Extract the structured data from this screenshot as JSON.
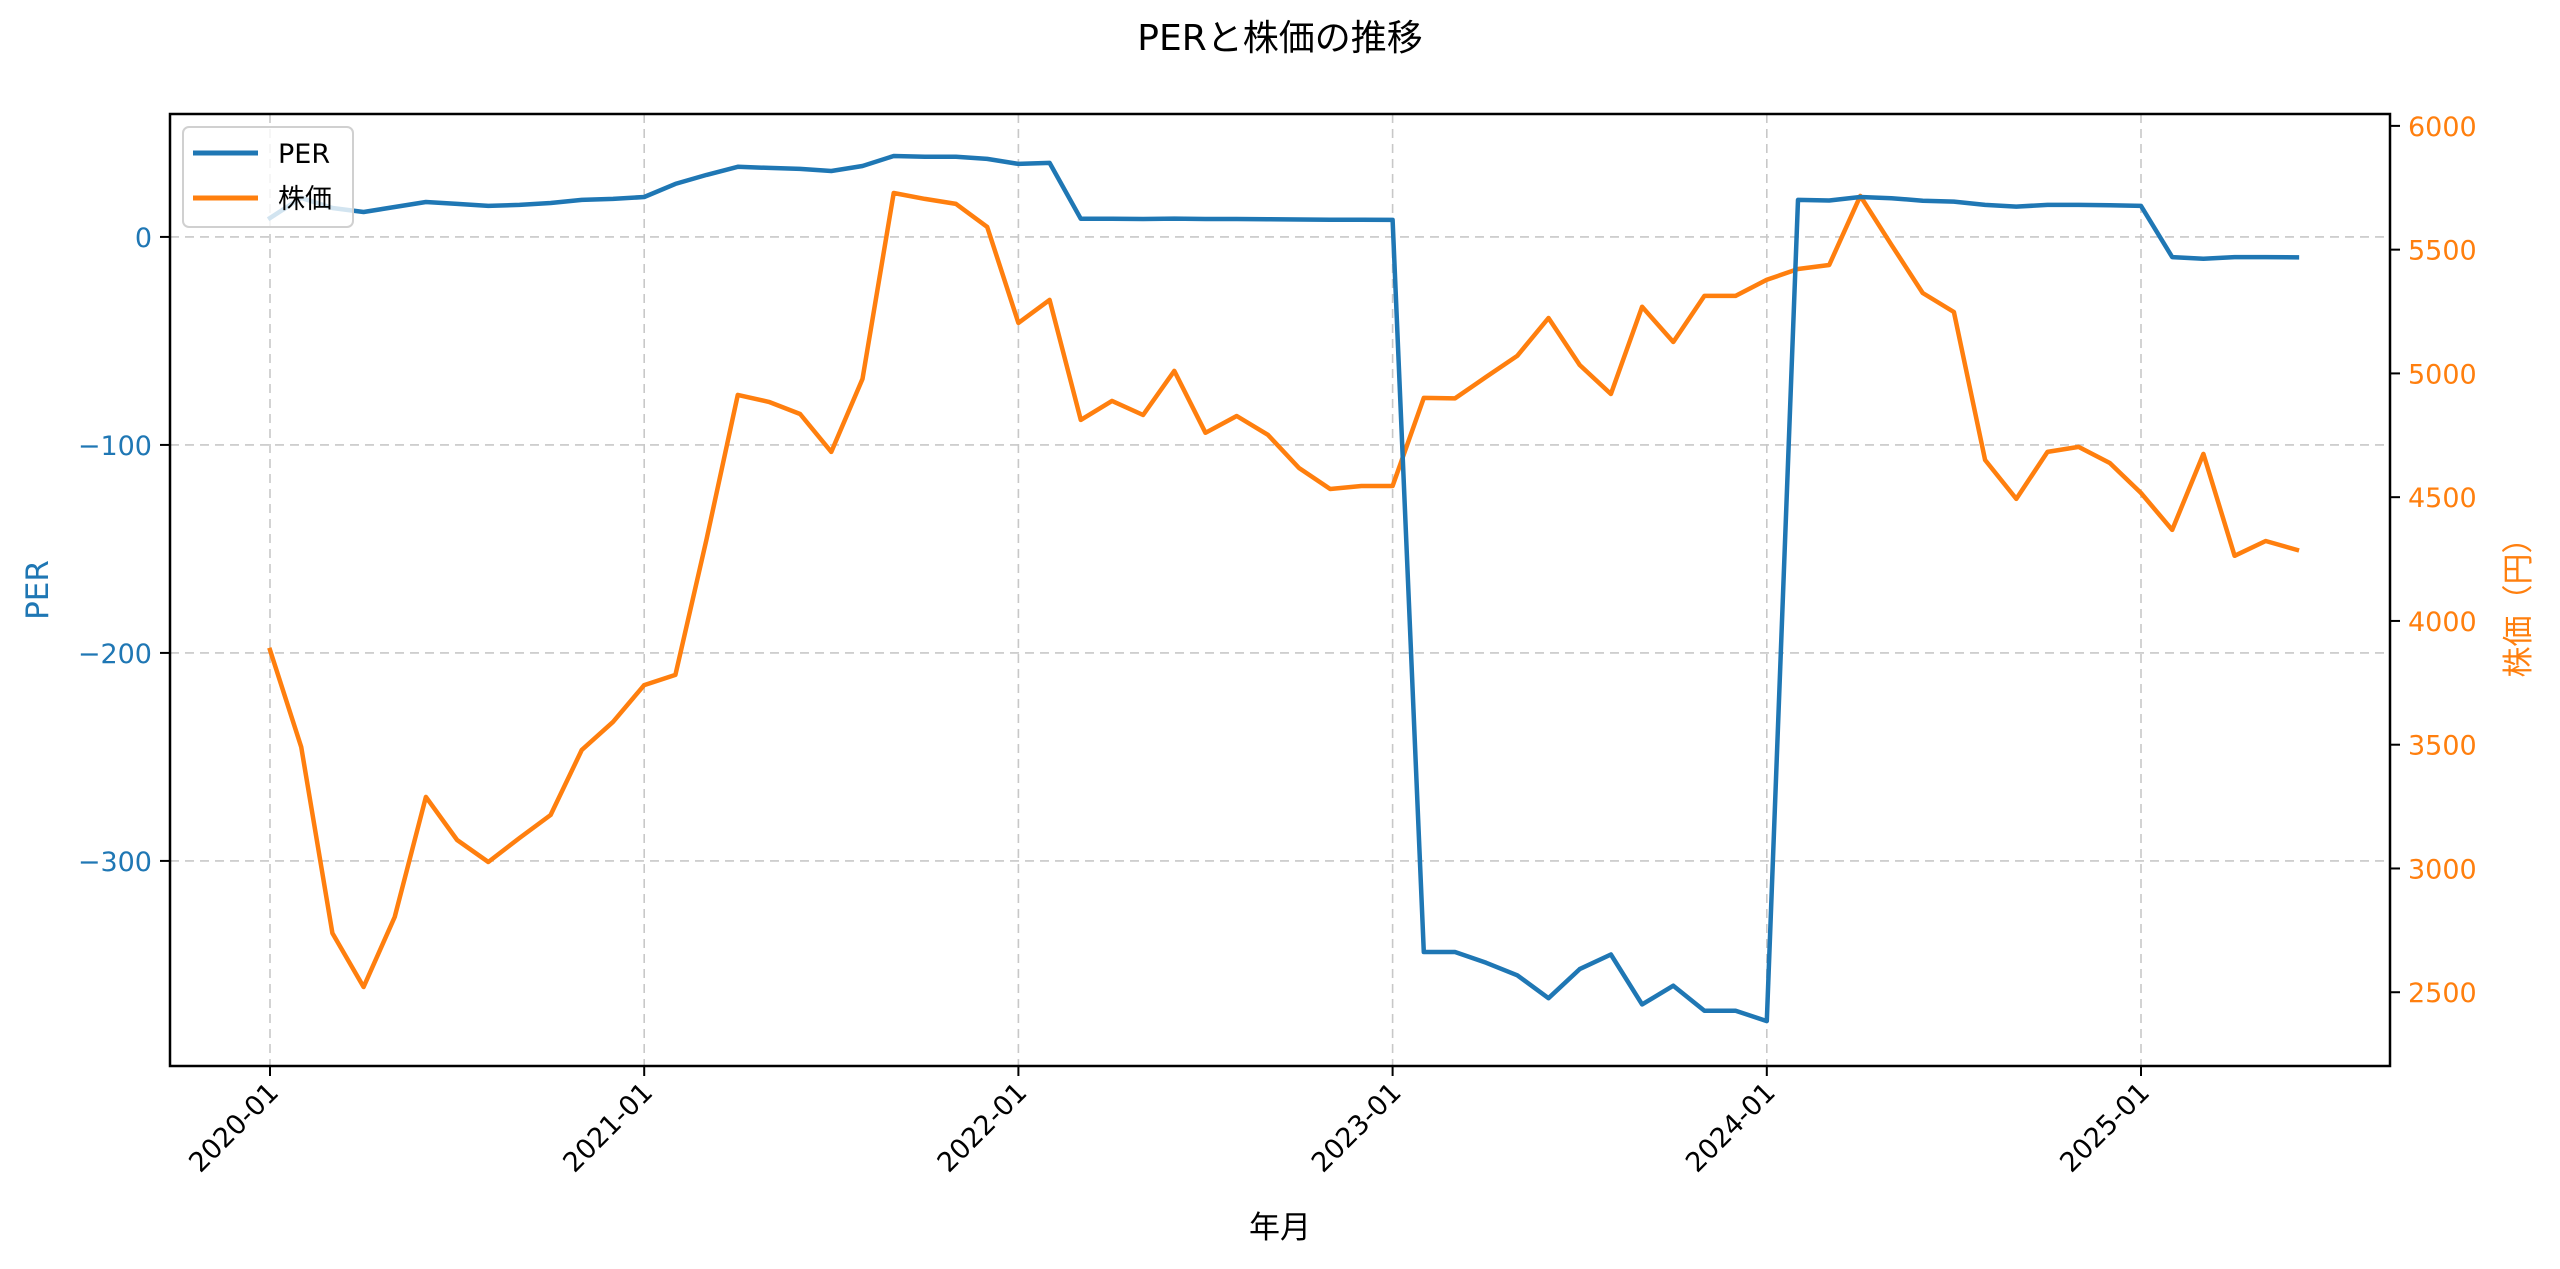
{
  "chart_data": {
    "type": "line",
    "title": "PERと株価の推移",
    "xlabel": "年月",
    "ylabel_left": "PER",
    "ylabel_right": "株価（円）",
    "x_ticks": [
      "2020-01",
      "2021-01",
      "2022-01",
      "2023-01",
      "2024-01",
      "2025-01"
    ],
    "y_left_ticks": [
      0,
      -100,
      -200,
      -300
    ],
    "y_left_tick_labels": [
      "0",
      "−100",
      "−200",
      "−300"
    ],
    "y_right_ticks": [
      2500,
      3000,
      3500,
      4000,
      4500,
      5000,
      5500,
      6000
    ],
    "y_right_tick_labels": [
      "2500",
      "3000",
      "3500",
      "4000",
      "4500",
      "5000",
      "5500",
      "6000"
    ],
    "ylim_left": [
      -398.6,
      59.1
    ],
    "ylim_right": [
      2202,
      6048
    ],
    "grid": true,
    "legend": {
      "position": "upper left",
      "entries": [
        "PER",
        "株価"
      ]
    },
    "x": [
      "2020-01",
      "2020-02",
      "2020-03",
      "2020-04",
      "2020-05",
      "2020-06",
      "2020-07",
      "2020-08",
      "2020-09",
      "2020-10",
      "2020-11",
      "2020-12",
      "2021-01",
      "2021-02",
      "2021-03",
      "2021-04",
      "2021-05",
      "2021-06",
      "2021-07",
      "2021-08",
      "2021-09",
      "2021-10",
      "2021-11",
      "2021-12",
      "2022-01",
      "2022-02",
      "2022-03",
      "2022-04",
      "2022-05",
      "2022-06",
      "2022-07",
      "2022-08",
      "2022-09",
      "2022-10",
      "2022-11",
      "2022-12",
      "2023-01",
      "2023-02",
      "2023-03",
      "2023-04",
      "2023-05",
      "2023-06",
      "2023-07",
      "2023-08",
      "2023-09",
      "2023-10",
      "2023-11",
      "2023-12",
      "2024-01",
      "2024-02",
      "2024-03",
      "2024-04",
      "2024-05",
      "2024-06",
      "2024-07",
      "2024-08",
      "2024-09",
      "2024-10",
      "2024-11",
      "2024-12",
      "2025-01",
      "2025-02",
      "2025-03",
      "2025-04",
      "2025-05",
      "2025-06"
    ],
    "series": [
      {
        "name": "PER",
        "axis": "left",
        "color": "#1f77b4",
        "values": [
          9.1,
          18.8,
          13.9,
          12.0,
          14.4,
          16.8,
          15.9,
          14.9,
          15.4,
          16.3,
          17.8,
          18.3,
          19.2,
          25.5,
          29.8,
          33.7,
          33.2,
          32.7,
          31.7,
          34.1,
          38.9,
          38.5,
          38.5,
          37.5,
          35.1,
          35.6,
          8.7,
          8.7,
          8.6,
          8.8,
          8.6,
          8.6,
          8.5,
          8.4,
          8.3,
          8.3,
          8.2,
          -343.8,
          -343.8,
          -349.0,
          -355.0,
          -366.0,
          -352.0,
          -345.0,
          -369.0,
          -360.0,
          -372.0,
          -372.0,
          -377.0,
          17.8,
          17.5,
          19.2,
          18.6,
          17.4,
          17.0,
          15.4,
          14.6,
          15.4,
          15.4,
          15.2,
          14.9,
          -9.7,
          -10.5,
          -9.7,
          -9.7,
          -9.8
        ]
      },
      {
        "name": "株価",
        "axis": "right",
        "color": "#ff7f0e",
        "values": [
          3883,
          3491,
          2739,
          2521,
          2804,
          3289,
          3115,
          3026,
          3123,
          3216,
          3479,
          3592,
          3741,
          3782,
          4331,
          4913,
          4885,
          4836,
          4683,
          4978,
          5729,
          5705,
          5685,
          5592,
          5204,
          5297,
          4812,
          4889,
          4832,
          5010,
          4760,
          4828,
          4752,
          4618,
          4533,
          4545,
          4545,
          4901,
          4899,
          4986,
          5071,
          5224,
          5034,
          4917,
          5269,
          5127,
          5313,
          5313,
          5378,
          5422,
          5438,
          5717,
          5519,
          5325,
          5248,
          4650,
          4493,
          4683,
          4703,
          4638,
          4517,
          4368,
          4675,
          4263,
          4323,
          4287
        ]
      }
    ]
  },
  "colors": {
    "per": "#1f77b4",
    "price": "#ff7f0e",
    "grid": "#c8c8c8",
    "axis": "#000000"
  }
}
